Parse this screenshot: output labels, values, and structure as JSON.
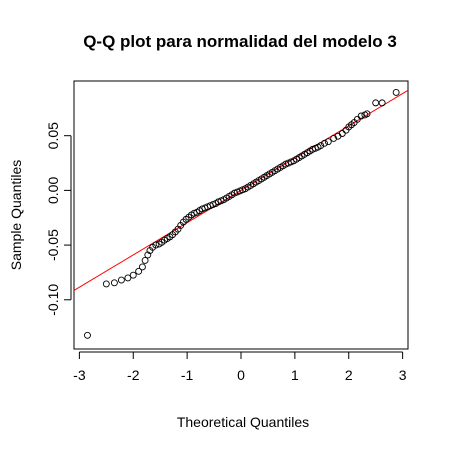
{
  "chart_data": {
    "type": "scatter",
    "title": "Q-Q plot para normalidad del modelo 3",
    "xlabel": "Theoretical Quantiles",
    "ylabel": "Sample Quantiles",
    "xlim": [
      -3.1,
      3.1
    ],
    "ylim": [
      -0.145,
      0.1
    ],
    "xticks": [
      -3,
      -2,
      -1,
      0,
      1,
      2,
      3
    ],
    "xtick_labels": [
      "-3",
      "-2",
      "-1",
      "0",
      "1",
      "2",
      "3"
    ],
    "yticks": [
      -0.1,
      -0.05,
      0.0,
      0.05
    ],
    "ytick_labels": [
      "-0.10",
      "-0.05",
      "0.00",
      "0.05"
    ],
    "grid": false,
    "reference_line": {
      "slope": 0.0295,
      "intercept": 0.0,
      "color": "#ff0000"
    },
    "point_color": "#000000",
    "points": [
      [
        -2.85,
        -0.1325
      ],
      [
        -2.5,
        -0.0855
      ],
      [
        -2.35,
        -0.0845
      ],
      [
        -2.22,
        -0.082
      ],
      [
        -2.1,
        -0.08
      ],
      [
        -2.0,
        -0.0775
      ],
      [
        -1.9,
        -0.074
      ],
      [
        -1.83,
        -0.07
      ],
      [
        -1.78,
        -0.064
      ],
      [
        -1.73,
        -0.059
      ],
      [
        -1.69,
        -0.055
      ],
      [
        -1.64,
        -0.052
      ],
      [
        -1.58,
        -0.05
      ],
      [
        -1.52,
        -0.049
      ],
      [
        -1.47,
        -0.0475
      ],
      [
        -1.42,
        -0.0455
      ],
      [
        -1.37,
        -0.044
      ],
      [
        -1.32,
        -0.0425
      ],
      [
        -1.27,
        -0.0405
      ],
      [
        -1.22,
        -0.038
      ],
      [
        -1.17,
        -0.0355
      ],
      [
        -1.12,
        -0.032
      ],
      [
        -1.07,
        -0.029
      ],
      [
        -1.02,
        -0.0265
      ],
      [
        -0.97,
        -0.0245
      ],
      [
        -0.92,
        -0.0225
      ],
      [
        -0.87,
        -0.021
      ],
      [
        -0.82,
        -0.02
      ],
      [
        -0.77,
        -0.0185
      ],
      [
        -0.72,
        -0.017
      ],
      [
        -0.67,
        -0.016
      ],
      [
        -0.62,
        -0.015
      ],
      [
        -0.57,
        -0.014
      ],
      [
        -0.52,
        -0.013
      ],
      [
        -0.47,
        -0.012
      ],
      [
        -0.42,
        -0.0105
      ],
      [
        -0.37,
        -0.0095
      ],
      [
        -0.32,
        -0.0085
      ],
      [
        -0.27,
        -0.007
      ],
      [
        -0.22,
        -0.0055
      ],
      [
        -0.17,
        -0.004
      ],
      [
        -0.12,
        -0.0025
      ],
      [
        -0.07,
        -0.0015
      ],
      [
        -0.02,
        -0.0005
      ],
      [
        0.03,
        0.0005
      ],
      [
        0.08,
        0.0015
      ],
      [
        0.13,
        0.003
      ],
      [
        0.18,
        0.0045
      ],
      [
        0.23,
        0.006
      ],
      [
        0.28,
        0.0075
      ],
      [
        0.33,
        0.009
      ],
      [
        0.38,
        0.0105
      ],
      [
        0.43,
        0.012
      ],
      [
        0.48,
        0.0135
      ],
      [
        0.53,
        0.015
      ],
      [
        0.58,
        0.0165
      ],
      [
        0.63,
        0.018
      ],
      [
        0.68,
        0.0195
      ],
      [
        0.73,
        0.021
      ],
      [
        0.78,
        0.0225
      ],
      [
        0.83,
        0.024
      ],
      [
        0.88,
        0.025
      ],
      [
        0.93,
        0.026
      ],
      [
        0.98,
        0.027
      ],
      [
        1.03,
        0.0285
      ],
      [
        1.08,
        0.03
      ],
      [
        1.13,
        0.0315
      ],
      [
        1.18,
        0.033
      ],
      [
        1.23,
        0.0345
      ],
      [
        1.28,
        0.036
      ],
      [
        1.33,
        0.0375
      ],
      [
        1.38,
        0.0385
      ],
      [
        1.43,
        0.0395
      ],
      [
        1.48,
        0.041
      ],
      [
        1.55,
        0.043
      ],
      [
        1.62,
        0.0445
      ],
      [
        1.72,
        0.0475
      ],
      [
        1.8,
        0.0495
      ],
      [
        1.88,
        0.052
      ],
      [
        1.95,
        0.055
      ],
      [
        2.0,
        0.058
      ],
      [
        2.05,
        0.06
      ],
      [
        2.1,
        0.062
      ],
      [
        2.16,
        0.065
      ],
      [
        2.23,
        0.068
      ],
      [
        2.3,
        0.069
      ],
      [
        2.34,
        0.07
      ],
      [
        2.5,
        0.08
      ],
      [
        2.62,
        0.08
      ],
      [
        2.88,
        0.0895
      ]
    ]
  }
}
